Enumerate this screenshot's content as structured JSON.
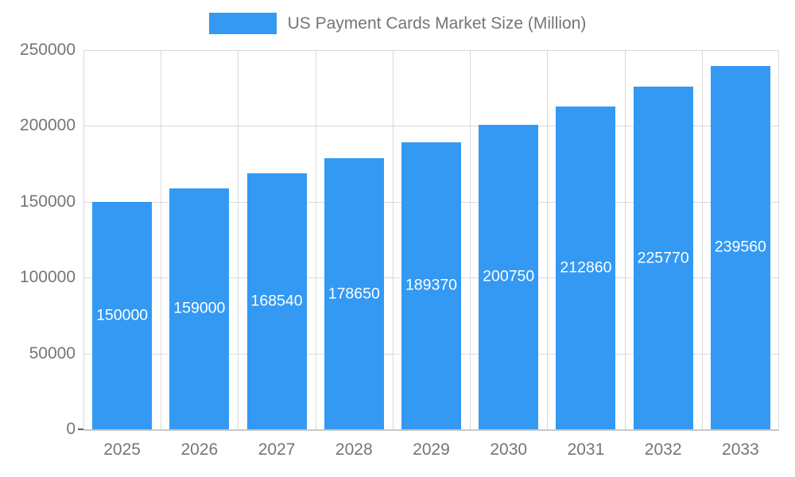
{
  "chart_data": {
    "type": "bar",
    "title": "US Payment Cards Market Size (Million)",
    "categories": [
      "2025",
      "2026",
      "2027",
      "2028",
      "2029",
      "2030",
      "2031",
      "2032",
      "2033"
    ],
    "values": [
      150000,
      159000,
      168540,
      178650,
      189370,
      200750,
      212860,
      225770,
      239560
    ],
    "xlabel": "",
    "ylabel": "",
    "ylim": [
      0,
      250000
    ],
    "yticks": [
      0,
      50000,
      100000,
      150000,
      200000,
      250000
    ],
    "grid": true,
    "legend_position": "top",
    "bar_color": "#3399f3",
    "value_label_color": "#ffffff",
    "axis_label_color": "#757575"
  }
}
